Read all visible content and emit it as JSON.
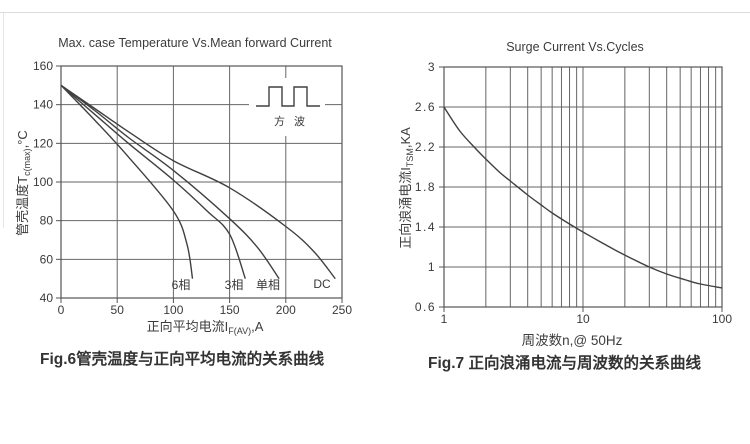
{
  "colors": {
    "background": "#ffffff",
    "grid": "#666666",
    "border": "#555555",
    "curve": "#404040",
    "text": "#3a3a3a",
    "caption": "#333333"
  },
  "fig6": {
    "title": "Max. case Temperature Vs.Mean forward Current",
    "caption": "Fig.6管壳温度与正向平均电流的关系曲线",
    "x_label": {
      "main": "正向平均电流I",
      "sub": "F(AV)",
      "tail": ",A"
    },
    "y_label": {
      "main": "管壳温度T",
      "sub": "c(max)",
      "tail": ",°C"
    }
  },
  "fig7": {
    "title": "Surge Current Vs.Cycles",
    "caption": "Fig.7 正向浪涌电流与周波数的关系曲线",
    "x_label": {
      "main": "周波数n,@ 50Hz",
      "sub": "",
      "tail": ""
    },
    "y_label": {
      "main": "正向浪涌电流I",
      "sub": "TSM",
      "tail": ",KA"
    }
  },
  "chart_data": [
    {
      "type": "line",
      "title": "Max. case Temperature Vs.Mean forward Current",
      "xlabel": "正向平均电流IF(AV),A",
      "ylabel": "管壳温度Tc(max),°C",
      "xlim": [
        0,
        250
      ],
      "ylim": [
        40,
        160
      ],
      "xticks": [
        0,
        50,
        100,
        150,
        200,
        250
      ],
      "yticks": [
        160,
        140,
        120,
        100,
        80,
        60,
        40
      ],
      "grid": true,
      "annotation": "方 波",
      "series": [
        {
          "name": "6相",
          "points": [
            [
              0,
              150
            ],
            [
              30,
              132
            ],
            [
              60,
              113
            ],
            [
              100,
              85
            ],
            [
              112,
              68
            ],
            [
              117,
              50
            ]
          ]
        },
        {
          "name": "3相",
          "points": [
            [
              0,
              150
            ],
            [
              30,
              135
            ],
            [
              60,
              120
            ],
            [
              100,
              101
            ],
            [
              130,
              85
            ],
            [
              150,
              73
            ],
            [
              164,
              50
            ]
          ]
        },
        {
          "name": "单相",
          "points": [
            [
              0,
              150
            ],
            [
              30,
              137
            ],
            [
              60,
              123
            ],
            [
              100,
              106
            ],
            [
              150,
              81
            ],
            [
              175,
              66
            ],
            [
              194,
              50
            ]
          ]
        },
        {
          "name": "DC",
          "points": [
            [
              0,
              150
            ],
            [
              30,
              138
            ],
            [
              60,
              126
            ],
            [
              100,
              111
            ],
            [
              150,
              97
            ],
            [
              200,
              77
            ],
            [
              225,
              64
            ],
            [
              244,
              50
            ]
          ]
        }
      ]
    },
    {
      "type": "line",
      "title": "Surge Current Vs.Cycles",
      "xlabel": "周波数n,@ 50Hz",
      "ylabel": "正向浪涌电流ITSM,KA",
      "xscale": "log",
      "xlim": [
        1,
        100
      ],
      "ylim": [
        0.6,
        3
      ],
      "xticks": [
        1,
        10,
        100
      ],
      "yticks": [
        3,
        2.6,
        2.2,
        1.8,
        1.4,
        1,
        0.6
      ],
      "grid": true,
      "series": [
        {
          "name": "ITSM",
          "points": [
            [
              1,
              2.6
            ],
            [
              1.3,
              2.36
            ],
            [
              1.7,
              2.18
            ],
            [
              2,
              2.08
            ],
            [
              2.5,
              1.95
            ],
            [
              3,
              1.86
            ],
            [
              4,
              1.72
            ],
            [
              5,
              1.62
            ],
            [
              6,
              1.54
            ],
            [
              8,
              1.43
            ],
            [
              10,
              1.35
            ],
            [
              13,
              1.26
            ],
            [
              17,
              1.17
            ],
            [
              22,
              1.09
            ],
            [
              30,
              1.0
            ],
            [
              40,
              0.93
            ],
            [
              55,
              0.87
            ],
            [
              70,
              0.83
            ],
            [
              100,
              0.79
            ]
          ]
        }
      ]
    }
  ]
}
